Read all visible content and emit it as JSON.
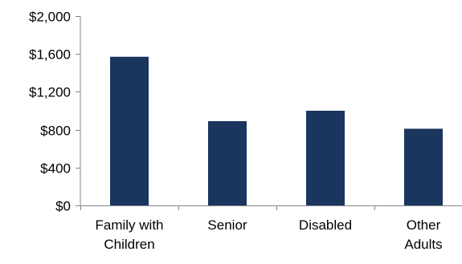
{
  "chart_data": {
    "type": "bar",
    "categories": [
      [
        "Family with",
        "Children"
      ],
      [
        "Senior"
      ],
      [
        "Disabled"
      ],
      [
        "Other",
        "Adults"
      ]
    ],
    "values": [
      1570,
      890,
      1000,
      810
    ],
    "ylim": [
      0,
      2000
    ],
    "yticks": [
      0,
      400,
      800,
      1200,
      1600,
      2000
    ],
    "ytick_labels": [
      "$0",
      "$400",
      "$800",
      "$1,200",
      "$1,600",
      "$2,000"
    ],
    "grid": false,
    "legend": "none",
    "bar_color": "#1a355e",
    "axis_color": "#868686"
  }
}
